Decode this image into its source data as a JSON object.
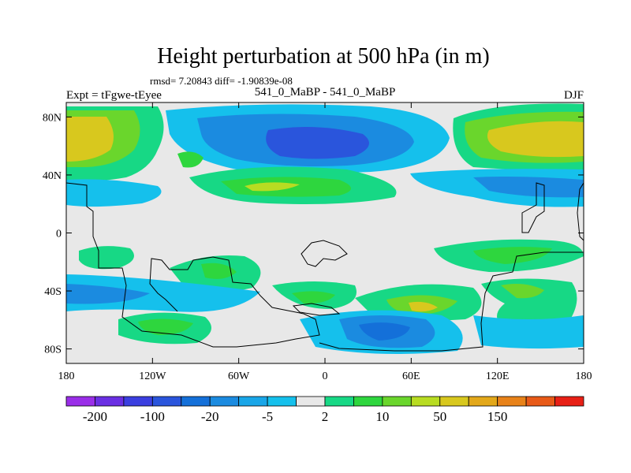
{
  "chart_data": {
    "type": "contour_map",
    "title": "Height perturbation at 500 hPa (in m)",
    "stats": "rmsd= 7.20843 diff= -1.90839e-08",
    "subtitle_left": "Expt = tFgwe-tEyee",
    "subtitle_center": "541_0_MaBP - 541_0_MaBP",
    "subtitle_right": "DJF",
    "x_ticks": [
      "180",
      "120W",
      "60W",
      "0",
      "60E",
      "120E",
      "180"
    ],
    "x_tick_values": [
      -180,
      -120,
      -60,
      0,
      60,
      120,
      180
    ],
    "y_ticks": [
      "80N",
      "40N",
      "0",
      "40S",
      "80S"
    ],
    "y_tick_values": [
      80,
      40,
      0,
      -40,
      -80
    ],
    "xlim": [
      -180,
      180
    ],
    "ylim": [
      -90,
      90
    ],
    "colorbar_labels": [
      "-200",
      "-100",
      "-20",
      "-5",
      "2",
      "10",
      "50",
      "150"
    ],
    "colorbar_colors": [
      "#9a2ee8",
      "#6a2fe3",
      "#3b3fe0",
      "#2a55dc",
      "#1470d9",
      "#1b8be0",
      "#19a6e8",
      "#15c0ec",
      "#e8e8e8",
      "#17d885",
      "#2ed63e",
      "#6ad62c",
      "#b8dc22",
      "#d8c81e",
      "#e3a81a",
      "#e88219",
      "#e85a18",
      "#e82016"
    ],
    "features": [
      {
        "name": "nh-pacific-high",
        "lon": -175,
        "lat": 70,
        "level": "50"
      },
      {
        "name": "arctic-low",
        "lon": -20,
        "lat": 62,
        "level": "-100"
      },
      {
        "name": "asia-high",
        "lon": 155,
        "lat": 65,
        "level": "50"
      },
      {
        "name": "atlantic-band",
        "lon": -40,
        "lat": 30,
        "level": "10"
      },
      {
        "name": "southern-ocean-high",
        "lon": 65,
        "lat": -52,
        "level": "50"
      },
      {
        "name": "antarctic-low",
        "lon": 50,
        "lat": -70,
        "level": "-20"
      }
    ]
  }
}
